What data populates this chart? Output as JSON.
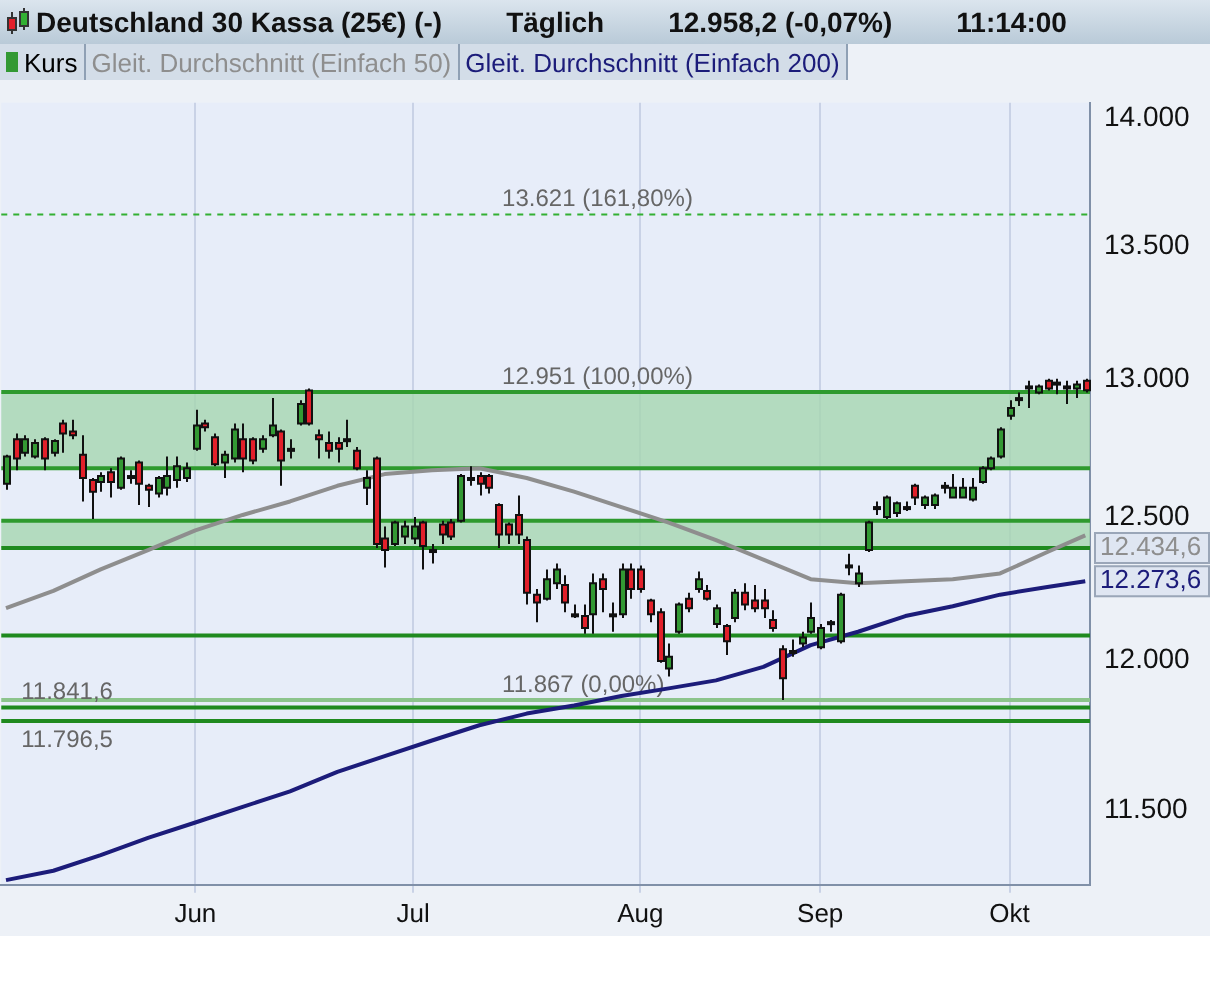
{
  "chart_data": {
    "type": "candlestick",
    "title": "Deutschland 30 Kassa (25€) (-)",
    "annotations": [
      "Täglich",
      "12.958,2 (-0,07%)",
      "11:14:00"
    ],
    "categories": [
      null,
      null,
      null,
      null,
      null,
      null,
      null,
      null,
      null,
      null,
      null,
      null,
      null,
      null,
      null,
      null,
      null,
      null,
      null,
      null,
      "Jun",
      null,
      null,
      null,
      null,
      null,
      null,
      null,
      null,
      null,
      null,
      null,
      null,
      null,
      null,
      null,
      null,
      null,
      null,
      null,
      null,
      null,
      null,
      "Jul",
      null,
      null,
      null,
      null,
      null,
      null,
      null,
      null,
      null,
      null,
      null,
      null,
      null,
      null,
      null,
      null,
      null,
      null,
      null,
      null,
      null,
      null,
      null,
      "Aug",
      null,
      null,
      null,
      null,
      null,
      null,
      null,
      null,
      null,
      null,
      null,
      null,
      null,
      null,
      null,
      null,
      null,
      null,
      "Sep",
      null,
      null,
      null,
      null,
      null,
      null,
      null,
      null,
      null,
      null,
      null,
      null,
      null,
      null,
      null,
      null,
      null,
      null,
      null,
      "Okt",
      null,
      null,
      null,
      null,
      null,
      null,
      null,
      null
    ],
    "series": [
      {
        "name": "Kurs",
        "colors": [
          "#339933",
          "#e2202a",
          "#339933",
          "#339933",
          "#e2202a",
          "#339933",
          "#e2202a",
          "#e2202a",
          "#e2202a",
          "#e2202a",
          "#339933",
          "#e2202a",
          "#339933",
          "#339933",
          "#e2202a",
          "#e2202a",
          "#339933",
          "#339933",
          "#339933",
          "#339933",
          "#339933",
          "#e2202a",
          "#e2202a",
          "#339933",
          "#339933",
          "#e2202a",
          "#e2202a",
          "#339933",
          "#339933",
          "#e2202a",
          "#339933",
          "#339933",
          "#e2202a",
          "#e2202a",
          "#e2202a",
          "#e2202a",
          "#339933",
          "#e2202a",
          "#339933",
          "#e2202a",
          "#e2202a",
          "#339933",
          "#339933",
          "#339933",
          "#e2202a",
          "#339933",
          "#e2202a",
          "#e2202a",
          "#339933",
          "#339933",
          "#e2202a",
          "#e2202a",
          "#e2202a",
          "#e2202a",
          "#e2202a",
          "#e2202a",
          "#e2202a",
          "#339933",
          "#339933",
          "#e2202a",
          "#339933",
          "#e2202a",
          "#339933",
          "#e2202a",
          "#339933",
          "#339933",
          "#e2202a",
          "#e2202a",
          "#e2202a",
          "#e2202a",
          "#339933",
          "#339933",
          "#e2202a",
          "#339933",
          "#e2202a",
          "#339933",
          "#e2202a",
          "#339933",
          "#e2202a",
          "#e2202a",
          "#e2202a",
          "#e2202a",
          "#e2202a",
          "#339933",
          "#339933",
          "#339933",
          "#339933",
          "#339933",
          "#339933",
          "#339933",
          "#339933",
          "#339933",
          "#339933",
          "#339933",
          "#339933",
          "#339933",
          "#e2202a",
          "#339933",
          "#339933",
          "#339933",
          "#339933",
          "#339933",
          "#339933",
          "#339933",
          "#339933",
          "#339933",
          "#339933",
          "#339933",
          "#339933",
          "#339933",
          "#e2202a",
          "#339933",
          "#339933",
          "#339933",
          "#e2202a"
        ],
        "ohlc": [
          [
            12618,
            12723,
            12597,
            12716
          ],
          [
            12779,
            12800,
            12667,
            12709
          ],
          [
            12730,
            12793,
            12716,
            12779
          ],
          [
            12716,
            12779,
            12709,
            12765
          ],
          [
            12779,
            12786,
            12667,
            12709
          ],
          [
            12730,
            12779,
            12716,
            12772
          ],
          [
            12836,
            12850,
            12730,
            12800
          ],
          [
            12807,
            12850,
            12779,
            12793
          ],
          [
            12723,
            12793,
            12555,
            12639
          ],
          [
            12632,
            12639,
            12493,
            12590
          ],
          [
            12625,
            12660,
            12590,
            12646
          ],
          [
            12660,
            12674,
            12569,
            12625
          ],
          [
            12604,
            12716,
            12597,
            12709
          ],
          [
            12646,
            12667,
            12618,
            12646
          ],
          [
            12695,
            12702,
            12542,
            12618
          ],
          [
            12611,
            12618,
            12535,
            12597
          ],
          [
            12583,
            12646,
            12569,
            12639
          ],
          [
            12604,
            12716,
            12576,
            12646
          ],
          [
            12632,
            12716,
            12604,
            12681
          ],
          [
            12639,
            12695,
            12625,
            12674
          ],
          [
            12744,
            12886,
            12737,
            12829
          ],
          [
            12836,
            12850,
            12807,
            12822
          ],
          [
            12786,
            12800,
            12681,
            12688
          ],
          [
            12695,
            12737,
            12639,
            12723
          ],
          [
            12709,
            12836,
            12695,
            12814
          ],
          [
            12779,
            12836,
            12660,
            12709
          ],
          [
            12779,
            12786,
            12688,
            12702
          ],
          [
            12744,
            12793,
            12730,
            12779
          ],
          [
            12793,
            12929,
            12786,
            12829
          ],
          [
            12807,
            12814,
            12611,
            12702
          ],
          [
            12744,
            12779,
            12709,
            12744
          ],
          [
            12836,
            12921,
            12829,
            12907
          ],
          [
            12957,
            12964,
            12829,
            12836
          ],
          [
            12793,
            12814,
            12709,
            12779
          ],
          [
            12765,
            12807,
            12709,
            12737
          ],
          [
            12765,
            12786,
            12695,
            12744
          ],
          [
            12779,
            12850,
            12751,
            12779
          ],
          [
            12737,
            12751,
            12667,
            12674
          ],
          [
            12604,
            12667,
            12542,
            12639
          ],
          [
            12709,
            12716,
            12390,
            12404
          ],
          [
            12424,
            12466,
            12322,
            12383
          ],
          [
            12404,
            12486,
            12397,
            12480
          ],
          [
            12431,
            12486,
            12404,
            12466
          ],
          [
            12424,
            12500,
            12404,
            12466
          ],
          [
            12480,
            12486,
            12315,
            12397
          ],
          [
            12383,
            12404,
            12336,
            12383
          ],
          [
            12473,
            12486,
            12404,
            12438
          ],
          [
            12480,
            12493,
            12418,
            12431
          ],
          [
            12486,
            12653,
            12480,
            12646
          ],
          [
            12639,
            12681,
            12611,
            12639
          ],
          [
            12646,
            12660,
            12576,
            12618
          ],
          [
            12646,
            12653,
            12583,
            12604
          ],
          [
            12542,
            12549,
            12390,
            12438
          ],
          [
            12473,
            12480,
            12404,
            12438
          ],
          [
            12507,
            12576,
            12404,
            12438
          ],
          [
            12418,
            12431,
            12193,
            12234
          ],
          [
            12227,
            12247,
            12132,
            12200
          ],
          [
            12213,
            12315,
            12207,
            12281
          ],
          [
            12267,
            12336,
            12247,
            12315
          ],
          [
            12261,
            12295,
            12166,
            12200
          ],
          [
            12159,
            12193,
            12146,
            12159
          ],
          [
            12153,
            12193,
            12092,
            12112
          ],
          [
            12159,
            12301,
            12092,
            12267
          ],
          [
            12281,
            12301,
            12166,
            12247
          ],
          [
            12159,
            12200,
            12099,
            12159
          ],
          [
            12159,
            12336,
            12146,
            12315
          ],
          [
            12315,
            12336,
            12213,
            12247
          ],
          [
            12315,
            12329,
            12234,
            12247
          ],
          [
            12207,
            12213,
            12132,
            12159
          ],
          [
            12166,
            12180,
            11993,
            11999
          ],
          [
            11973,
            12059,
            11946,
            12013
          ],
          [
            12099,
            12200,
            12092,
            12193
          ],
          [
            12213,
            12234,
            12166,
            12180
          ],
          [
            12247,
            12308,
            12234,
            12281
          ],
          [
            12240,
            12261,
            12207,
            12213
          ],
          [
            12126,
            12193,
            12112,
            12180
          ],
          [
            12119,
            12126,
            12019,
            12066
          ],
          [
            12146,
            12247,
            12132,
            12234
          ],
          [
            12234,
            12267,
            12173,
            12193
          ],
          [
            12207,
            12261,
            12166,
            12180
          ],
          [
            12207,
            12247,
            12146,
            12180
          ],
          [
            12139,
            12173,
            12099,
            12112
          ],
          [
            12039,
            12053,
            11867,
            11940
          ],
          [
            12033,
            12072,
            12013,
            12033
          ],
          [
            12059,
            12099,
            12046,
            12079
          ],
          [
            12099,
            12200,
            12092,
            12146
          ],
          [
            12046,
            12126,
            12039,
            12112
          ],
          [
            12132,
            12139,
            12099,
            12132
          ],
          [
            12066,
            12234,
            12059,
            12227
          ],
          [
            12329,
            12370,
            12295,
            12329
          ],
          [
            12267,
            12329,
            12254,
            12301
          ],
          [
            12383,
            12486,
            12376,
            12480
          ],
          [
            12535,
            12555,
            12507,
            12535
          ],
          [
            12500,
            12576,
            12493,
            12569
          ],
          [
            12514,
            12555,
            12500,
            12549
          ],
          [
            12535,
            12555,
            12521,
            12535
          ],
          [
            12611,
            12618,
            12542,
            12569
          ],
          [
            12542,
            12576,
            12528,
            12569
          ],
          [
            12542,
            12583,
            12528,
            12576
          ],
          [
            12611,
            12625,
            12583,
            12611
          ],
          [
            12569,
            12653,
            12569,
            12604
          ],
          [
            12569,
            12639,
            12569,
            12604
          ],
          [
            12562,
            12639,
            12555,
            12604
          ],
          [
            12625,
            12681,
            12618,
            12674
          ],
          [
            12674,
            12716,
            12667,
            12709
          ],
          [
            12716,
            12822,
            12709,
            12814
          ],
          [
            12864,
            12921,
            12850,
            12893
          ],
          [
            12929,
            12950,
            12900,
            12929
          ],
          [
            12972,
            12993,
            12893,
            12972
          ],
          [
            12950,
            12979,
            12943,
            12972
          ],
          [
            12993,
            13000,
            12957,
            12964
          ],
          [
            12986,
            13000,
            12943,
            12986
          ],
          [
            12972,
            12993,
            12907,
            12972
          ],
          [
            12964,
            12993,
            12929,
            12979
          ],
          [
            12993,
            13000,
            12950,
            12958
          ]
        ]
      },
      {
        "name": "Gleit. Durchschnitt (Einfach 50)",
        "type": "line",
        "color": "#8e8e8e",
        "value_labels": [
          null,
          null,
          null,
          null,
          null,
          null,
          null,
          null,
          null,
          null,
          null,
          null,
          null,
          null,
          null,
          null,
          null,
          null,
          null,
          null,
          null,
          null,
          null,
          null,
          null,
          null,
          null,
          null,
          null,
          null,
          null,
          null,
          null,
          null,
          null,
          null,
          null,
          null,
          null,
          null,
          null,
          null,
          null,
          null,
          null,
          null,
          null,
          null,
          null,
          null,
          null,
          null,
          null,
          null,
          null,
          null,
          null,
          null,
          null,
          null,
          null,
          null,
          null,
          null,
          null,
          null,
          null,
          null,
          null,
          null,
          null,
          null,
          null,
          null,
          null,
          null,
          null,
          null,
          null,
          null,
          null,
          null,
          null,
          null,
          null,
          null,
          null,
          null,
          null,
          null,
          null,
          null,
          null,
          null,
          null,
          null,
          null,
          null,
          null,
          null,
          null,
          null,
          null,
          null,
          null,
          null,
          null,
          null,
          null,
          null,
          null,
          null,
          null,
          null,
          "12.434,6"
        ],
        "values": [
          12180,
          null,
          null,
          null,
          null,
          12240,
          null,
          null,
          null,
          null,
          12315,
          null,
          null,
          null,
          null,
          12383,
          null,
          null,
          null,
          null,
          12452,
          null,
          null,
          null,
          null,
          12507,
          null,
          null,
          null,
          null,
          12555,
          null,
          null,
          null,
          null,
          12611,
          null,
          null,
          null,
          null,
          12653,
          null,
          null,
          null,
          null,
          12667,
          null,
          null,
          null,
          null,
          12674,
          null,
          null,
          null,
          null,
          12639,
          null,
          null,
          null,
          null,
          12590,
          null,
          null,
          null,
          null,
          12535,
          null,
          null,
          null,
          null,
          12480,
          null,
          null,
          null,
          null,
          12418,
          null,
          null,
          null,
          null,
          12349,
          null,
          null,
          null,
          null,
          12281,
          null,
          null,
          null,
          null,
          12267,
          null,
          null,
          null,
          null,
          12274,
          null,
          null,
          null,
          null,
          12281,
          null,
          null,
          null,
          null,
          12301,
          null,
          null,
          null,
          null,
          12376,
          null,
          null,
          null,
          12434.6
        ]
      },
      {
        "name": "Gleit. Durchschnitt (Einfach 200)",
        "type": "line",
        "color": "#1c1c7a",
        "value_labels": [
          null,
          null,
          null,
          null,
          null,
          null,
          null,
          null,
          null,
          null,
          null,
          null,
          null,
          null,
          null,
          null,
          null,
          null,
          null,
          null,
          null,
          null,
          null,
          null,
          null,
          null,
          null,
          null,
          null,
          null,
          null,
          null,
          null,
          null,
          null,
          null,
          null,
          null,
          null,
          null,
          null,
          null,
          null,
          null,
          null,
          null,
          null,
          null,
          null,
          null,
          null,
          null,
          null,
          null,
          null,
          null,
          null,
          null,
          null,
          null,
          null,
          null,
          null,
          null,
          null,
          null,
          null,
          null,
          null,
          null,
          null,
          null,
          null,
          null,
          null,
          null,
          null,
          null,
          null,
          null,
          null,
          null,
          null,
          null,
          null,
          null,
          null,
          null,
          null,
          null,
          null,
          null,
          null,
          null,
          null,
          null,
          null,
          null,
          null,
          null,
          null,
          null,
          null,
          null,
          null,
          null,
          null,
          null,
          null,
          null,
          null,
          null,
          null,
          null,
          "12.273,6"
        ],
        "values": [
          11275,
          null,
          null,
          null,
          null,
          11305,
          null,
          null,
          null,
          null,
          11355,
          null,
          null,
          null,
          null,
          11411,
          null,
          null,
          null,
          null,
          11461,
          null,
          null,
          null,
          null,
          11512,
          null,
          null,
          null,
          null,
          11563,
          null,
          null,
          null,
          null,
          11627,
          null,
          null,
          null,
          null,
          11679,
          null,
          null,
          null,
          null,
          11731,
          null,
          null,
          null,
          null,
          11782,
          null,
          null,
          null,
          null,
          11821,
          null,
          null,
          null,
          null,
          11848,
          null,
          null,
          null,
          null,
          11880,
          null,
          null,
          null,
          null,
          11906,
          null,
          null,
          null,
          null,
          11933,
          null,
          null,
          null,
          null,
          11979,
          null,
          null,
          null,
          null,
          12053,
          null,
          null,
          null,
          null,
          12099,
          null,
          null,
          null,
          null,
          12153,
          null,
          null,
          null,
          null,
          12187,
          null,
          null,
          null,
          null,
          12227,
          null,
          null,
          null,
          null,
          12254,
          null,
          null,
          null,
          12273.6
        ]
      }
    ],
    "ylim": [
      11260,
      14060
    ],
    "yticks": [
      {
        "value": 11500,
        "label": "11.500"
      },
      {
        "value": 12000,
        "label": "12.000"
      },
      {
        "value": 12500,
        "label": "12.500"
      },
      {
        "value": 13000,
        "label": "13.000"
      },
      {
        "value": 13500,
        "label": "13.500"
      },
      {
        "value": 14000,
        "label": "14.000"
      }
    ],
    "log": true,
    "grid": "x",
    "legend": "top left",
    "bands": [
      {
        "axis": "y",
        "from": 12674,
        "to": 12951,
        "color": "#a6d6b0"
      },
      {
        "axis": "y",
        "from": 12390,
        "to": 12486,
        "color": "#a6d6b0"
      }
    ],
    "ref_lines": [
      {
        "axis": "y",
        "value": 13621,
        "label": "13.621 (161,80%)",
        "color": "#33b033",
        "line_style": "dashed"
      },
      {
        "axis": "y",
        "value": 12951,
        "label": "12.951 (100,00%)",
        "color": "#2e9a2e"
      },
      {
        "axis": "y",
        "value": 12674,
        "color": "#2e9a2e"
      },
      {
        "axis": "y",
        "value": 12486,
        "color": "#2e9a2e"
      },
      {
        "axis": "y",
        "value": 12390,
        "color": "#1f8a1f"
      },
      {
        "axis": "y",
        "value": 12086,
        "color": "#1f8a1f"
      },
      {
        "axis": "y",
        "value": 11867,
        "label": "11.867 (0,00%)",
        "color": "#8cc48c"
      },
      {
        "axis": "y",
        "value": 11841.6,
        "label": "11.841,6",
        "color": "#1f8a1f"
      },
      {
        "axis": "y",
        "value": 11796.5,
        "label": "11.796,5",
        "color": "#1f8a1f"
      }
    ]
  }
}
